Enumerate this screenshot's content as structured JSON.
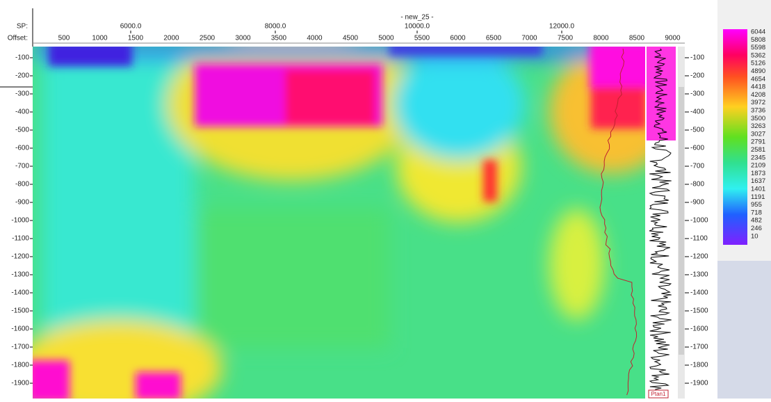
{
  "header": {
    "title": "- new_25 -",
    "sp_label": "SP:",
    "offset_label": "Offset:",
    "sp_ticks": [
      "6000.0",
      "8000.0",
      "10000.0",
      "12000.0"
    ],
    "offset_ticks": [
      "500",
      "1000",
      "1500",
      "2000",
      "2500",
      "3000",
      "3500",
      "4000",
      "4500",
      "5000",
      "5500",
      "6000",
      "6500",
      "7000",
      "7500",
      "8000",
      "8500",
      "9000"
    ]
  },
  "depth_ticks": [
    "-100",
    "-200",
    "-300",
    "-400",
    "-500",
    "-600",
    "-700",
    "-800",
    "-900",
    "-1000",
    "-1100",
    "-1200",
    "-1300",
    "-1400",
    "-1500",
    "-1600",
    "-1700",
    "-1800",
    "-1900"
  ],
  "color_scale": [
    "6044",
    "5808",
    "5598",
    "5362",
    "5126",
    "4890",
    "4654",
    "4418",
    "4208",
    "3972",
    "3736",
    "3500",
    "3263",
    "3027",
    "2791",
    "2581",
    "2345",
    "2109",
    "1873",
    "1637",
    "1401",
    "1191",
    "955",
    "718",
    "482",
    "246",
    "10"
  ],
  "well_label": "Ptan1"
}
